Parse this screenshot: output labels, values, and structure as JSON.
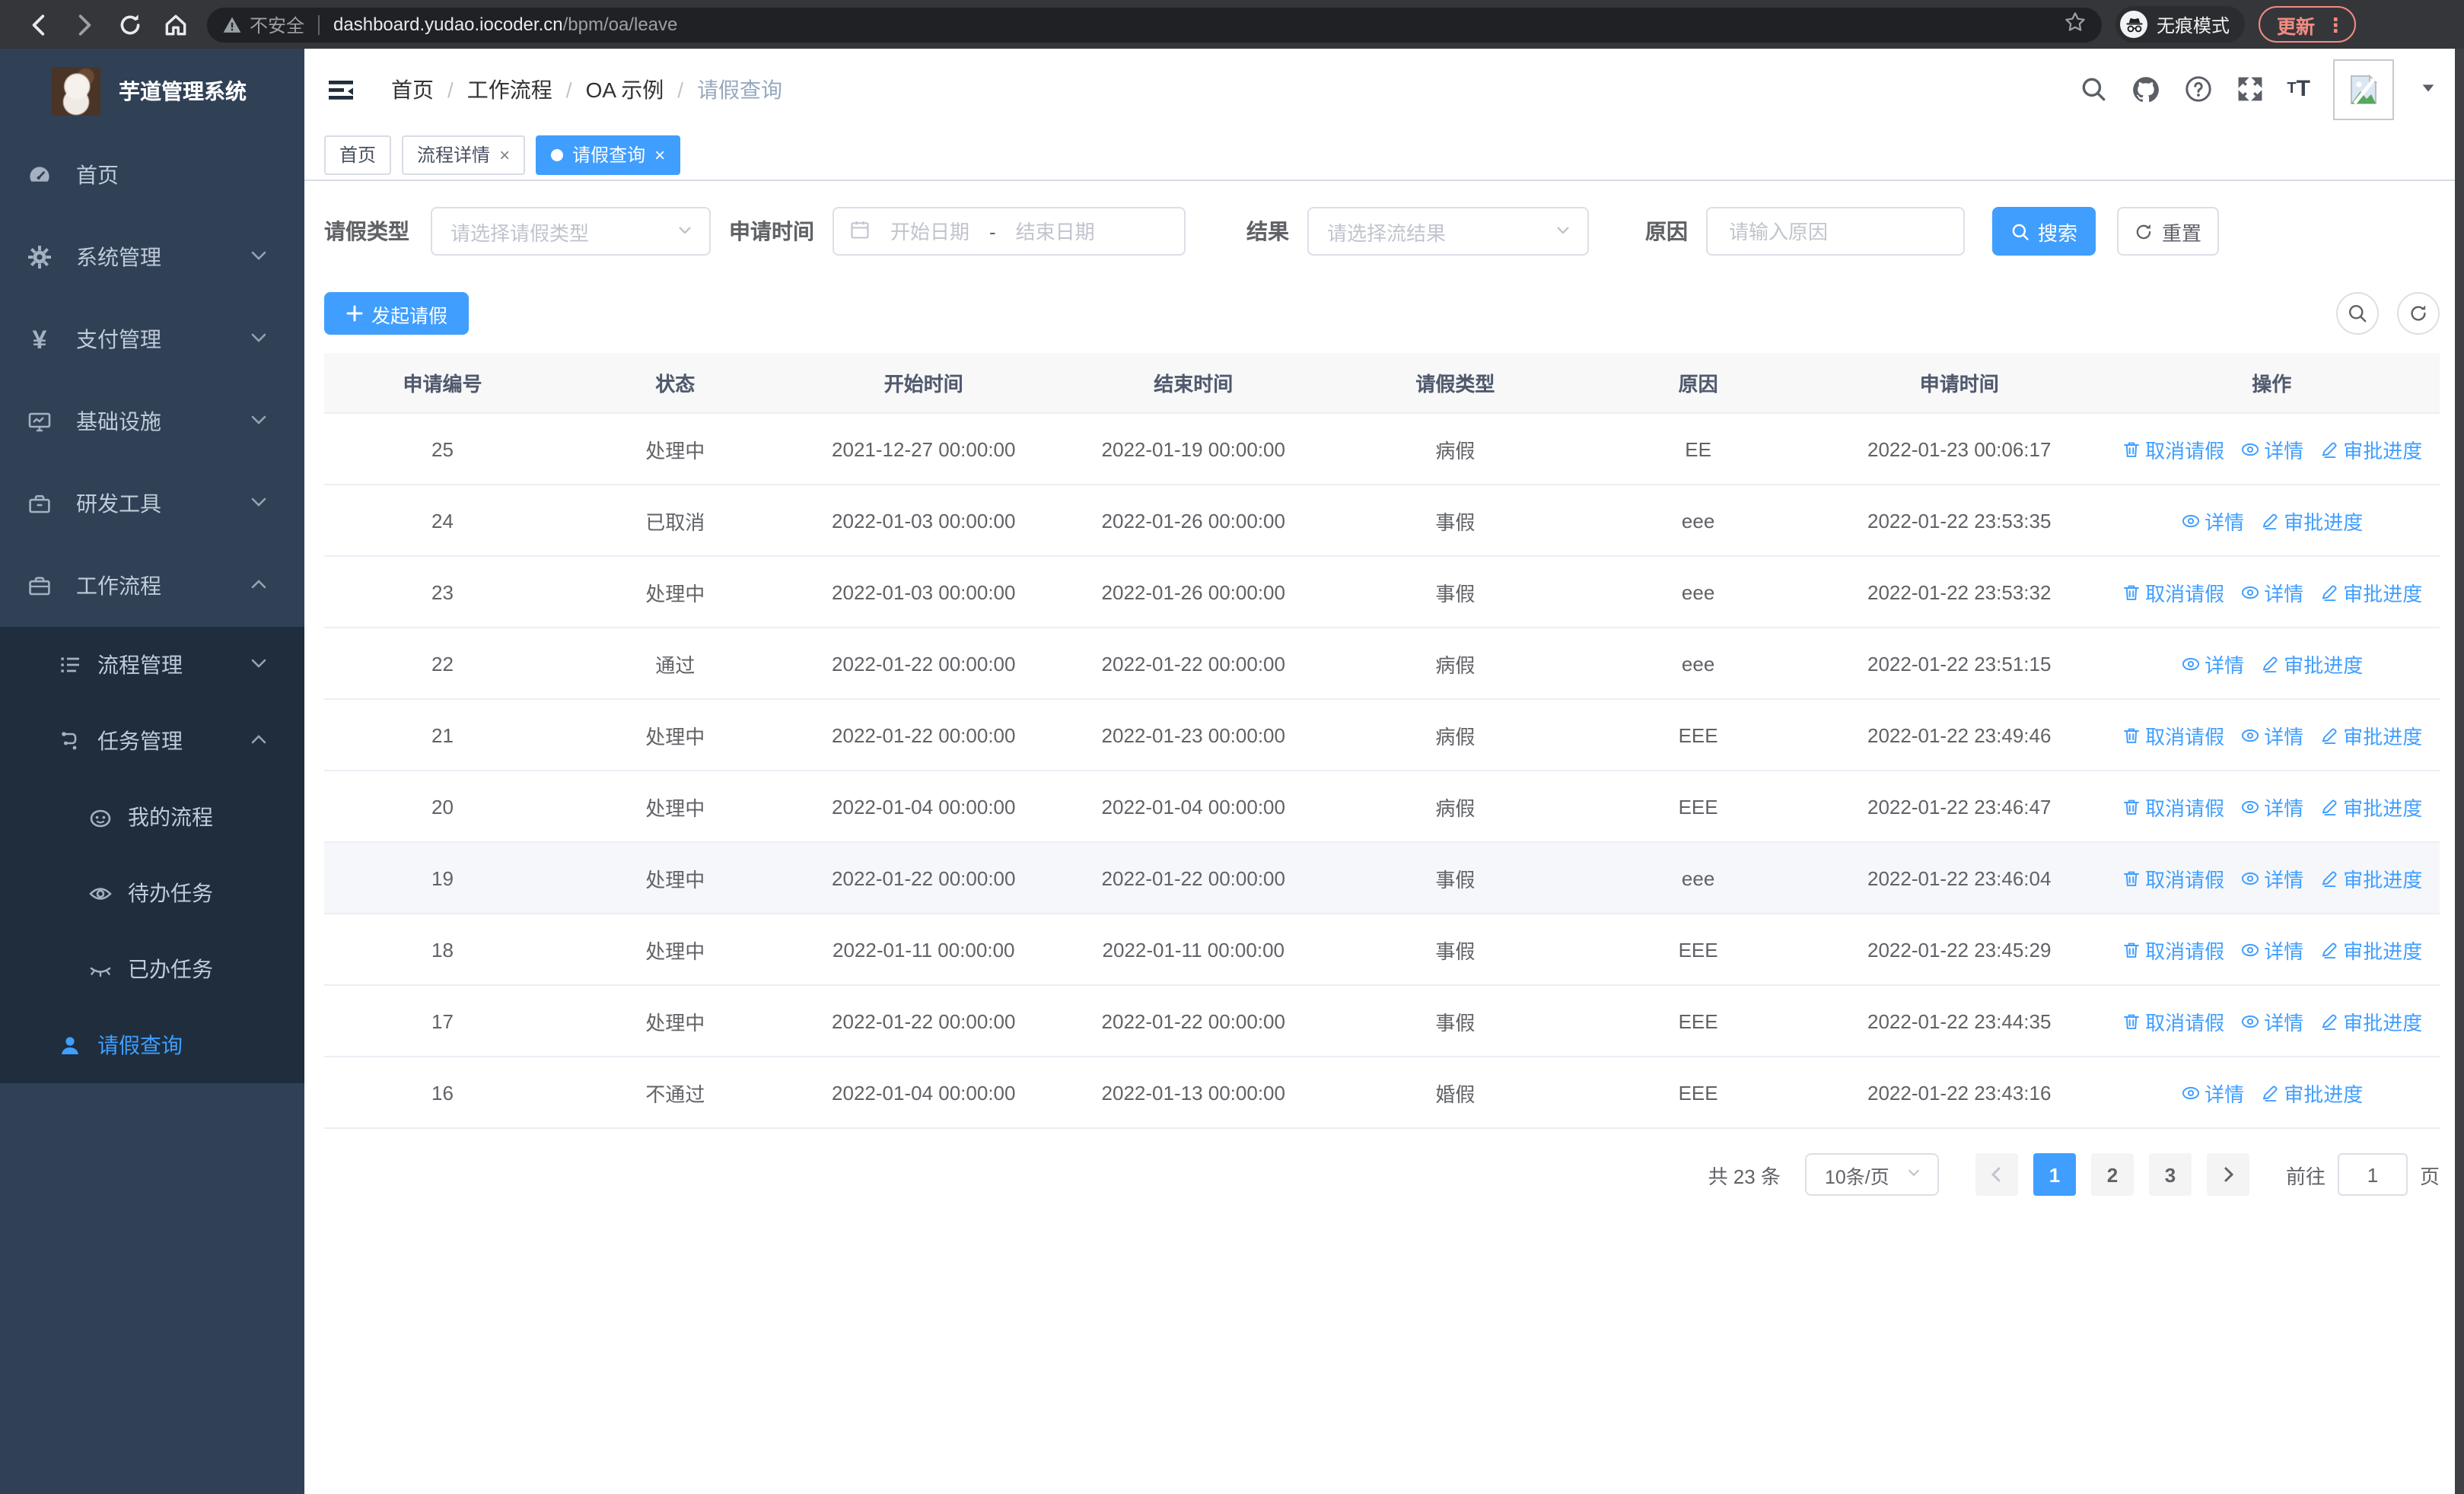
{
  "browser": {
    "security_text": "不安全",
    "url_host": "dashboard.yudao.iocoder.cn",
    "url_path": "/bpm/oa/leave",
    "incognito_label": "无痕模式",
    "update_label": "更新"
  },
  "sidebar": {
    "title": "芋道管理系统",
    "items": [
      {
        "label": "首页"
      },
      {
        "label": "系统管理"
      },
      {
        "label": "支付管理"
      },
      {
        "label": "基础设施"
      },
      {
        "label": "研发工具"
      },
      {
        "label": "工作流程"
      },
      {
        "label": "流程管理"
      },
      {
        "label": "任务管理"
      },
      {
        "label": "我的流程"
      },
      {
        "label": "待办任务"
      },
      {
        "label": "已办任务"
      },
      {
        "label": "请假查询"
      }
    ]
  },
  "header": {
    "breadcrumb": [
      "首页",
      "工作流程",
      "OA 示例",
      "请假查询"
    ],
    "tabs": [
      {
        "label": "首页"
      },
      {
        "label": "流程详情"
      },
      {
        "label": "请假查询"
      }
    ]
  },
  "filters": {
    "leave_type_label": "请假类型",
    "leave_type_placeholder": "请选择请假类型",
    "apply_time_label": "申请时间",
    "start_date_placeholder": "开始日期",
    "range_separator": "-",
    "end_date_placeholder": "结束日期",
    "result_label": "结果",
    "result_placeholder": "请选择流结果",
    "reason_label": "原因",
    "reason_placeholder": "请输入原因",
    "search_label": "搜索",
    "reset_label": "重置"
  },
  "toolbar": {
    "create_label": "发起请假"
  },
  "table": {
    "columns": [
      "申请编号",
      "状态",
      "开始时间",
      "结束时间",
      "请假类型",
      "原因",
      "申请时间",
      "操作"
    ],
    "action_labels": {
      "cancel": "取消请假",
      "detail": "详情",
      "progress": "审批进度"
    },
    "rows": [
      {
        "id": "25",
        "status": "处理中",
        "start": "2021-12-27 00:00:00",
        "end": "2022-01-19 00:00:00",
        "type": "病假",
        "reason": "EE",
        "applied": "2022-01-23 00:06:17",
        "actions": [
          "cancel",
          "detail",
          "progress"
        ],
        "highlight": false
      },
      {
        "id": "24",
        "status": "已取消",
        "start": "2022-01-03 00:00:00",
        "end": "2022-01-26 00:00:00",
        "type": "事假",
        "reason": "eee",
        "applied": "2022-01-22 23:53:35",
        "actions": [
          "detail",
          "progress"
        ],
        "highlight": false
      },
      {
        "id": "23",
        "status": "处理中",
        "start": "2022-01-03 00:00:00",
        "end": "2022-01-26 00:00:00",
        "type": "事假",
        "reason": "eee",
        "applied": "2022-01-22 23:53:32",
        "actions": [
          "cancel",
          "detail",
          "progress"
        ],
        "highlight": false
      },
      {
        "id": "22",
        "status": "通过",
        "start": "2022-01-22 00:00:00",
        "end": "2022-01-22 00:00:00",
        "type": "病假",
        "reason": "eee",
        "applied": "2022-01-22 23:51:15",
        "actions": [
          "detail",
          "progress"
        ],
        "highlight": false
      },
      {
        "id": "21",
        "status": "处理中",
        "start": "2022-01-22 00:00:00",
        "end": "2022-01-23 00:00:00",
        "type": "病假",
        "reason": "EEE",
        "applied": "2022-01-22 23:49:46",
        "actions": [
          "cancel",
          "detail",
          "progress"
        ],
        "highlight": false
      },
      {
        "id": "20",
        "status": "处理中",
        "start": "2022-01-04 00:00:00",
        "end": "2022-01-04 00:00:00",
        "type": "病假",
        "reason": "EEE",
        "applied": "2022-01-22 23:46:47",
        "actions": [
          "cancel",
          "detail",
          "progress"
        ],
        "highlight": false
      },
      {
        "id": "19",
        "status": "处理中",
        "start": "2022-01-22 00:00:00",
        "end": "2022-01-22 00:00:00",
        "type": "事假",
        "reason": "eee",
        "applied": "2022-01-22 23:46:04",
        "actions": [
          "cancel",
          "detail",
          "progress"
        ],
        "highlight": true
      },
      {
        "id": "18",
        "status": "处理中",
        "start": "2022-01-11 00:00:00",
        "end": "2022-01-11 00:00:00",
        "type": "事假",
        "reason": "EEE",
        "applied": "2022-01-22 23:45:29",
        "actions": [
          "cancel",
          "detail",
          "progress"
        ],
        "highlight": false
      },
      {
        "id": "17",
        "status": "处理中",
        "start": "2022-01-22 00:00:00",
        "end": "2022-01-22 00:00:00",
        "type": "事假",
        "reason": "EEE",
        "applied": "2022-01-22 23:44:35",
        "actions": [
          "cancel",
          "detail",
          "progress"
        ],
        "highlight": false
      },
      {
        "id": "16",
        "status": "不通过",
        "start": "2022-01-04 00:00:00",
        "end": "2022-01-13 00:00:00",
        "type": "婚假",
        "reason": "EEE",
        "applied": "2022-01-22 23:43:16",
        "actions": [
          "detail",
          "progress"
        ],
        "highlight": false
      }
    ]
  },
  "pagination": {
    "total_label": "共 23 条",
    "page_size_label": "10条/页",
    "pages": [
      "1",
      "2",
      "3"
    ],
    "active_page": "1",
    "goto_label": "前往",
    "goto_value": "1",
    "page_unit_label": "页"
  },
  "colors": {
    "accent": "#409eff",
    "sidebar_bg": "#304156",
    "submenu_bg": "#1f2d3d"
  }
}
